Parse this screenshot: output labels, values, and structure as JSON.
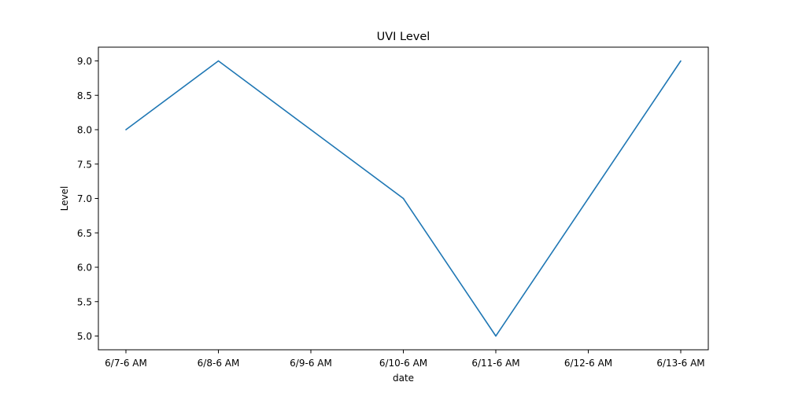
{
  "chart_data": {
    "type": "line",
    "title": "UVI Level",
    "xlabel": "date",
    "ylabel": "Level",
    "categories": [
      "6/7-6 AM",
      "6/8-6 AM",
      "6/9-6 AM",
      "6/10-6 AM",
      "6/11-6 AM",
      "6/12-6 AM",
      "6/13-6 AM"
    ],
    "series": [
      {
        "values": [
          8,
          9,
          8,
          7,
          5,
          7,
          9
        ],
        "color": "#1f77b4"
      }
    ],
    "ylim": [
      4.8,
      9.2
    ],
    "yticks": [
      "5.0",
      "5.5",
      "6.0",
      "6.5",
      "7.0",
      "7.5",
      "8.0",
      "8.5",
      "9.0"
    ],
    "grid": false,
    "legend": "none"
  }
}
